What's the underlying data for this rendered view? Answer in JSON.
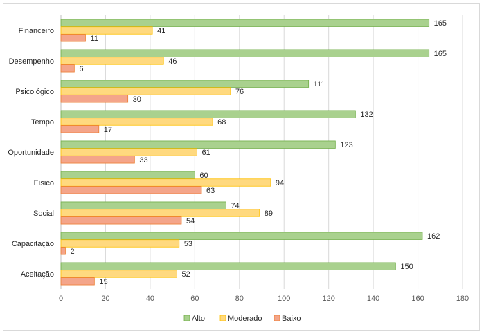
{
  "chart_data": {
    "type": "bar",
    "orientation": "horizontal",
    "categories": [
      "Financeiro",
      "Desempenho",
      "Psicológico",
      "Tempo",
      "Oportunidade",
      "Físico",
      "Social",
      "Capacitação",
      "Aceitação"
    ],
    "series": [
      {
        "name": "Alto",
        "values": [
          165,
          165,
          111,
          132,
          123,
          60,
          74,
          162,
          150
        ],
        "color": "#a9d18e",
        "stroke": "#70ad47"
      },
      {
        "name": "Moderado",
        "values": [
          41,
          46,
          76,
          68,
          61,
          94,
          89,
          53,
          52
        ],
        "color": "#ffd97f",
        "stroke": "#ffc000"
      },
      {
        "name": "Baixo",
        "values": [
          11,
          6,
          30,
          17,
          33,
          63,
          54,
          2,
          15
        ],
        "color": "#f4a58a",
        "stroke": "#ed7d31"
      }
    ],
    "xlim": [
      0,
      180
    ],
    "x_ticks": [
      0,
      20,
      40,
      60,
      80,
      100,
      120,
      140,
      160,
      180
    ],
    "grid": true,
    "legend_position": "bottom",
    "title": "",
    "xlabel": "",
    "ylabel": ""
  }
}
